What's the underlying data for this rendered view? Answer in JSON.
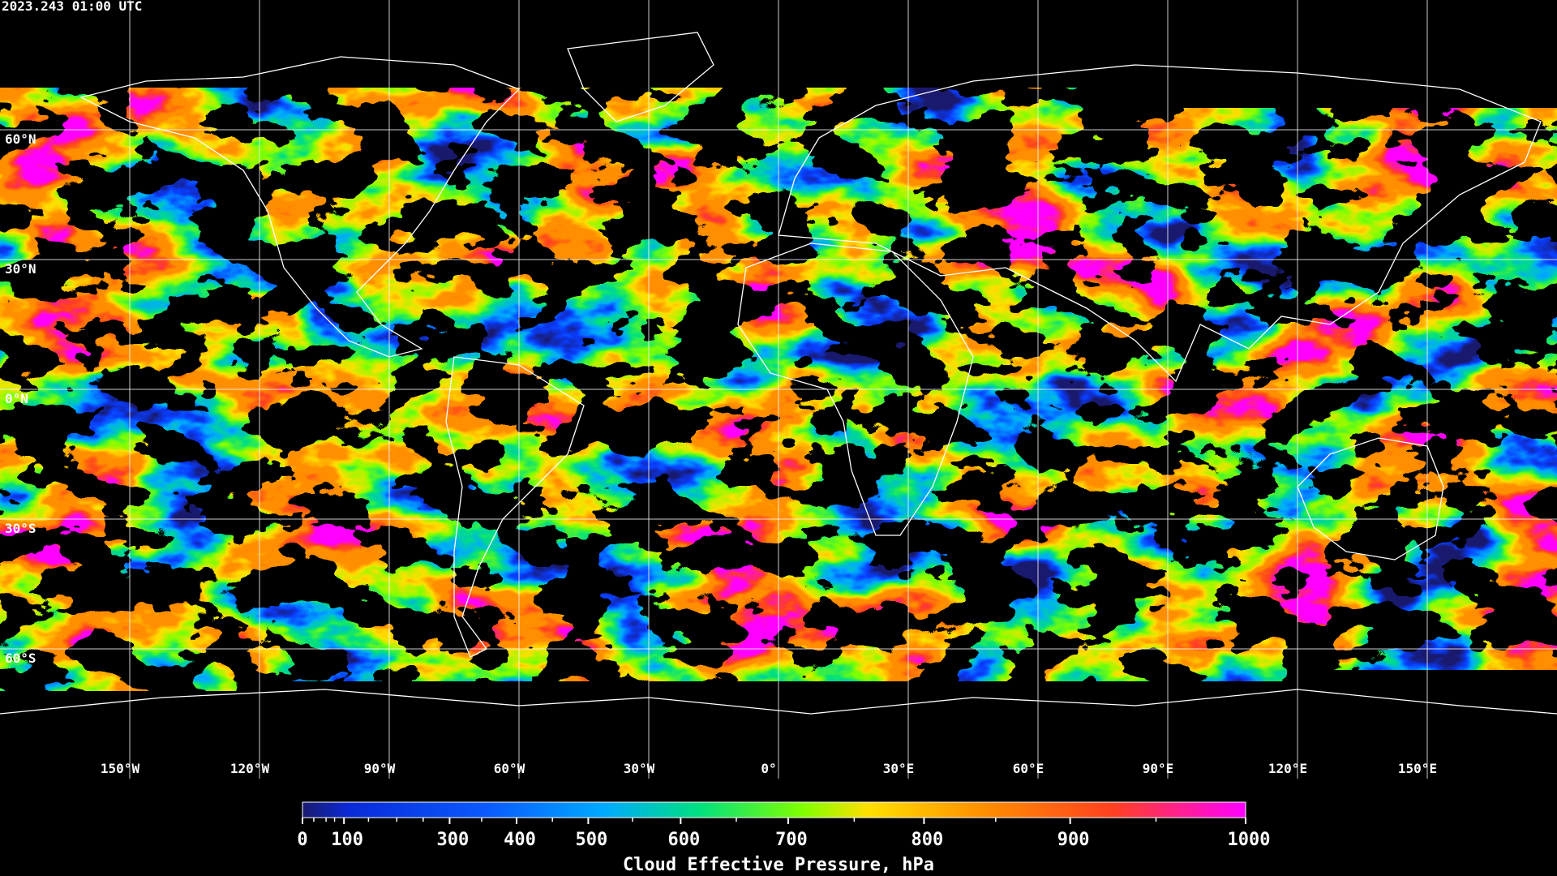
{
  "header": {
    "timestamp": "2023.243 01:00 UTC"
  },
  "map": {
    "latitude_labels": [
      "60°N",
      "30°N",
      "0°N",
      "30°S",
      "60°S"
    ],
    "longitude_labels": [
      "150°W",
      "120°W",
      "90°W",
      "60°W",
      "30°W",
      "0°",
      "30°E",
      "60°E",
      "90°E",
      "120°E",
      "150°E"
    ]
  },
  "colorbar": {
    "title": "Cloud Effective Pressure, hPa",
    "ticks": [
      0,
      100,
      300,
      400,
      500,
      600,
      700,
      800,
      900,
      1000
    ]
  }
}
